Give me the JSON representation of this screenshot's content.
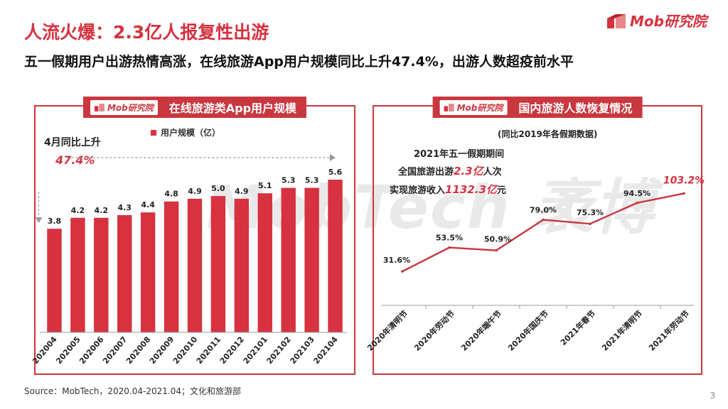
{
  "header": {
    "title": "人流火爆：2.3亿人报复性出游",
    "subtitle": "五一假期用户出游热情高涨，在线旅游App用户规模同比上升47.4%，出游人数超疫前水平",
    "logo_text": "Mob研究院"
  },
  "watermark": "MobTech 袤博",
  "left_panel": {
    "logo_text": "Mob研究院",
    "title": "在线旅游类App用户规模",
    "annotation_label": "4月同比上升",
    "annotation_value": "47.4%"
  },
  "right_panel": {
    "logo_text": "Mob研究院",
    "title": "国内旅游人数恢复情况",
    "note": "(同比2019年各假期数据)",
    "summary_line1": "2021年五一假期期间",
    "summary_line2_prefix": "全国旅游出游",
    "summary_line2_value": "2.3亿",
    "summary_line2_suffix": "人次",
    "summary_line3_prefix": "实现旅游收入",
    "summary_line3_value": "1132.3亿",
    "summary_line3_suffix": "元"
  },
  "footer": {
    "source": "Source：MobTech，2020.04-2021.04；文化和旅游部",
    "page_number": "3"
  },
  "colors": {
    "accent": "#d6323f",
    "panel_border": "#c9373f",
    "bar": "#d6323f",
    "line": "#c9373f"
  },
  "chart_data": [
    {
      "type": "bar",
      "title": "在线旅游类App用户规模",
      "legend": "用户规模（亿）",
      "legend_position": "top",
      "categories": [
        "202004",
        "202005",
        "202006",
        "202007",
        "202008",
        "202009",
        "202010",
        "202011",
        "202012",
        "202101",
        "202102",
        "202103",
        "202104"
      ],
      "values": [
        3.8,
        4.2,
        4.2,
        4.3,
        4.4,
        4.8,
        4.9,
        5.0,
        4.9,
        5.1,
        5.3,
        5.3,
        5.6
      ],
      "labels": [
        "3.8",
        "4.2",
        "4.2",
        "4.3",
        "4.4",
        "4.8",
        "4.9",
        "5.0",
        "4.9",
        "5.1",
        "5.3",
        "5.3",
        "5.6"
      ],
      "ylim": [
        0,
        6.2
      ],
      "grid": false
    },
    {
      "type": "line",
      "title": "国内旅游人数恢复情况",
      "categories": [
        "2020年清明节",
        "2020年劳动节",
        "2020年端午节",
        "2020年国庆节",
        "2021年春节",
        "2021年清明节",
        "2021年劳动节"
      ],
      "values": [
        31.6,
        53.5,
        50.9,
        79.0,
        75.3,
        94.5,
        103.2
      ],
      "labels": [
        "31.6%",
        "53.5%",
        "50.9%",
        "79.0%",
        "75.3%",
        "94.5%",
        "103.2%"
      ],
      "ylim": [
        20,
        110
      ],
      "grid": false
    }
  ]
}
